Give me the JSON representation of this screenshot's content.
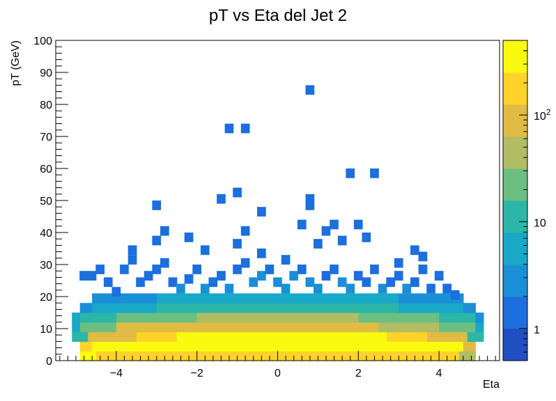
{
  "chart_data": {
    "type": "heatmap",
    "title": "pT vs Eta del Jet 2",
    "xlabel": "Eta",
    "ylabel": "pT (GeV)",
    "xlim": [
      -5.5,
      5.5
    ],
    "ylim": [
      0,
      100
    ],
    "x_ticks": [
      "−4",
      "−2",
      "0",
      "2",
      "4"
    ],
    "x_tick_values": [
      -4,
      -2,
      0,
      2,
      4
    ],
    "y_ticks": [
      "0",
      "10",
      "20",
      "30",
      "40",
      "50",
      "60",
      "70",
      "80",
      "90",
      "100"
    ],
    "y_tick_values": [
      0,
      10,
      20,
      30,
      40,
      50,
      60,
      70,
      80,
      90,
      100
    ],
    "bin_width_x": 0.22,
    "bin_height_y": 3,
    "z_scale": "log",
    "zlim": [
      0.5,
      500
    ],
    "z_ticks": [
      {
        "value": 1,
        "label": "1"
      },
      {
        "value": 10,
        "label": "10"
      },
      {
        "value": 100,
        "label": "10",
        "sup": "2"
      }
    ],
    "palette": [
      "#1f4fc0",
      "#1c6fdc",
      "#1a8fd6",
      "#19a8c8",
      "#2cb6a8",
      "#6cbf80",
      "#b0bd62",
      "#e0bc45",
      "#fdd32a",
      "#fafa10"
    ],
    "bands": [
      {
        "y": 1.5,
        "x_from": -4.9,
        "x_to": 4.9,
        "cells": [
          [
            -4.9,
            -4.5,
            300
          ],
          [
            -4.5,
            4.5,
            240
          ],
          [
            4.5,
            4.9,
            40
          ]
        ]
      },
      {
        "y": 4.5,
        "x_from": -4.9,
        "x_to": 4.9,
        "cells": [
          [
            -4.9,
            -4.6,
            150
          ],
          [
            -4.6,
            -3.5,
            280
          ],
          [
            -3.5,
            -2.5,
            380
          ],
          [
            -2.5,
            1.8,
            480
          ],
          [
            1.8,
            2.7,
            420
          ],
          [
            2.7,
            3.5,
            340
          ],
          [
            3.5,
            4.6,
            260
          ],
          [
            4.6,
            4.9,
            70
          ]
        ]
      },
      {
        "y": 7.5,
        "x_from": -5.1,
        "x_to": 5.1,
        "cells": [
          [
            -5.1,
            -4.7,
            8
          ],
          [
            -4.7,
            -3.5,
            120
          ],
          [
            -3.5,
            -2.5,
            220
          ],
          [
            -2.5,
            2.7,
            420
          ],
          [
            2.7,
            3.7,
            230
          ],
          [
            3.7,
            4.7,
            110
          ],
          [
            4.7,
            5.1,
            8
          ]
        ]
      },
      {
        "y": 10.5,
        "x_from": -5.1,
        "x_to": 5.1,
        "cells": [
          [
            -5.1,
            -4.9,
            4
          ],
          [
            -4.9,
            -4.0,
            30
          ],
          [
            -4.0,
            -2.5,
            70
          ],
          [
            -2.5,
            2.5,
            110
          ],
          [
            2.5,
            4.0,
            60
          ],
          [
            4.0,
            4.9,
            25
          ],
          [
            4.9,
            5.1,
            4
          ]
        ]
      },
      {
        "y": 13.5,
        "x_from": -5.1,
        "x_to": 5.1,
        "cells": [
          [
            -5.1,
            -4.9,
            4
          ],
          [
            -4.9,
            -4.0,
            10
          ],
          [
            -4.0,
            -2.0,
            24
          ],
          [
            -2.0,
            2.0,
            35
          ],
          [
            2.0,
            4.0,
            22
          ],
          [
            4.0,
            4.9,
            9
          ],
          [
            4.9,
            5.1,
            3
          ]
        ]
      },
      {
        "y": 16.5,
        "x_from": -4.9,
        "x_to": 4.9,
        "cells": [
          [
            -4.9,
            -4.6,
            2
          ],
          [
            -4.6,
            -3.0,
            6
          ],
          [
            -3.0,
            3.0,
            12
          ],
          [
            3.0,
            4.6,
            6
          ],
          [
            4.6,
            4.9,
            2
          ]
        ]
      },
      {
        "y": 19.5,
        "x_from": -4.6,
        "x_to": 4.6,
        "cells": [
          [
            -4.6,
            -3.0,
            2
          ],
          [
            -3.0,
            3.0,
            4
          ],
          [
            3.0,
            4.6,
            2
          ]
        ]
      }
    ],
    "points": [
      [
        -4.8,
        26.5,
        1
      ],
      [
        -4.6,
        26.5,
        1
      ],
      [
        -4.4,
        28.5,
        1
      ],
      [
        -4.2,
        24.5,
        1
      ],
      [
        -4.0,
        21.5,
        1
      ],
      [
        -3.8,
        28.5,
        1
      ],
      [
        -3.6,
        31.5,
        1
      ],
      [
        -3.4,
        24.5,
        1
      ],
      [
        -3.2,
        26.5,
        1
      ],
      [
        -3.0,
        28.5,
        1
      ],
      [
        -2.8,
        30.5,
        1
      ],
      [
        -2.6,
        24.5,
        1
      ],
      [
        -2.4,
        22.5,
        2
      ],
      [
        -2.2,
        25.5,
        1
      ],
      [
        -2.0,
        28.5,
        1
      ],
      [
        -1.8,
        22.5,
        2
      ],
      [
        -1.6,
        24.5,
        1
      ],
      [
        -1.4,
        26.5,
        1
      ],
      [
        -1.2,
        22.5,
        2
      ],
      [
        -1.0,
        28.5,
        1
      ],
      [
        -0.8,
        30.5,
        1
      ],
      [
        -0.6,
        24.5,
        2
      ],
      [
        -0.4,
        26.5,
        2
      ],
      [
        -0.2,
        28.5,
        1
      ],
      [
        0.0,
        24.5,
        2
      ],
      [
        0.2,
        22.5,
        3
      ],
      [
        0.4,
        26.5,
        2
      ],
      [
        0.6,
        28.5,
        1
      ],
      [
        0.8,
        24.5,
        2
      ],
      [
        1.0,
        22.5,
        2
      ],
      [
        1.2,
        26.5,
        1
      ],
      [
        1.4,
        28.5,
        1
      ],
      [
        1.6,
        24.5,
        2
      ],
      [
        1.8,
        22.5,
        2
      ],
      [
        2.0,
        26.5,
        1
      ],
      [
        2.2,
        24.5,
        1
      ],
      [
        2.4,
        28.5,
        1
      ],
      [
        2.6,
        22.5,
        2
      ],
      [
        2.8,
        24.5,
        1
      ],
      [
        3.0,
        26.5,
        1
      ],
      [
        3.2,
        22.5,
        2
      ],
      [
        3.4,
        24.5,
        1
      ],
      [
        3.6,
        28.5,
        1
      ],
      [
        3.8,
        22.5,
        1
      ],
      [
        4.0,
        26.5,
        1
      ],
      [
        4.2,
        22.5,
        1
      ],
      [
        4.4,
        20.5,
        1
      ],
      [
        -3.6,
        34.5,
        1
      ],
      [
        -3.0,
        37.5,
        1
      ],
      [
        -2.8,
        40.5,
        1
      ],
      [
        -2.2,
        38.5,
        1
      ],
      [
        -1.8,
        34.5,
        1
      ],
      [
        -1.0,
        36.5,
        1
      ],
      [
        -0.8,
        40.5,
        1
      ],
      [
        -0.4,
        33.5,
        1
      ],
      [
        0.2,
        31.5,
        1
      ],
      [
        0.6,
        42.5,
        1
      ],
      [
        1.0,
        36.5,
        1
      ],
      [
        1.2,
        40.5,
        1
      ],
      [
        1.4,
        42.5,
        1
      ],
      [
        1.6,
        37.5,
        1
      ],
      [
        2.0,
        42.5,
        1
      ],
      [
        2.2,
        38.5,
        1
      ],
      [
        3.0,
        30.5,
        1
      ],
      [
        3.4,
        34.5,
        1
      ],
      [
        3.6,
        32.5,
        1
      ],
      [
        -3.0,
        48.5,
        1
      ],
      [
        -1.4,
        50.5,
        1
      ],
      [
        -1.0,
        52.5,
        1
      ],
      [
        -0.4,
        46.5,
        1
      ],
      [
        0.8,
        48.5,
        1
      ],
      [
        0.8,
        50.5,
        1
      ],
      [
        1.8,
        58.5,
        1
      ],
      [
        2.4,
        58.5,
        1
      ],
      [
        -1.2,
        72.5,
        1
      ],
      [
        -0.8,
        72.5,
        1
      ],
      [
        0.8,
        84.5,
        1
      ]
    ]
  }
}
